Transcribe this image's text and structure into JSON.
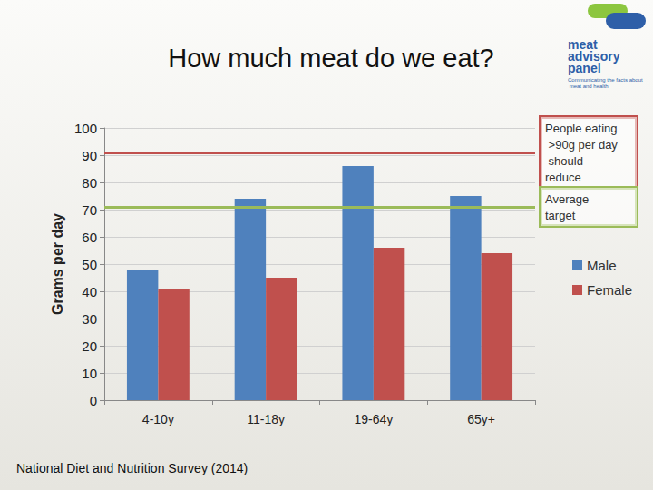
{
  "chart_data": {
    "type": "bar",
    "title": "How much meat do we eat?",
    "source": "National Diet and Nutrition Survey (2014)",
    "logo": {
      "lines": [
        "meat",
        "advisory",
        "panel"
      ],
      "tagline": "Communicating the facts about meat and health"
    },
    "y_label": "Grams per day",
    "categories": [
      "4-10y",
      "11-18y",
      "19-64y",
      "65y+"
    ],
    "series": [
      {
        "name": "Male",
        "color": "#4f81bd",
        "values": [
          48,
          74,
          86,
          75
        ]
      },
      {
        "name": "Female",
        "color": "#c0504d",
        "values": [
          41,
          45,
          56,
          54
        ]
      }
    ],
    "reference_lines": [
      {
        "value": 91,
        "label": "People eating >90g per day should reduce",
        "color": "#c0504d"
      },
      {
        "value": 71,
        "label": "Average target",
        "color": "#9bbb59"
      }
    ],
    "ylim": [
      0,
      100
    ],
    "yticks": [
      0,
      10,
      20,
      30,
      40,
      50,
      60,
      70,
      80,
      90,
      100
    ],
    "grid": true,
    "legend": "right",
    "data_labels": false
  }
}
